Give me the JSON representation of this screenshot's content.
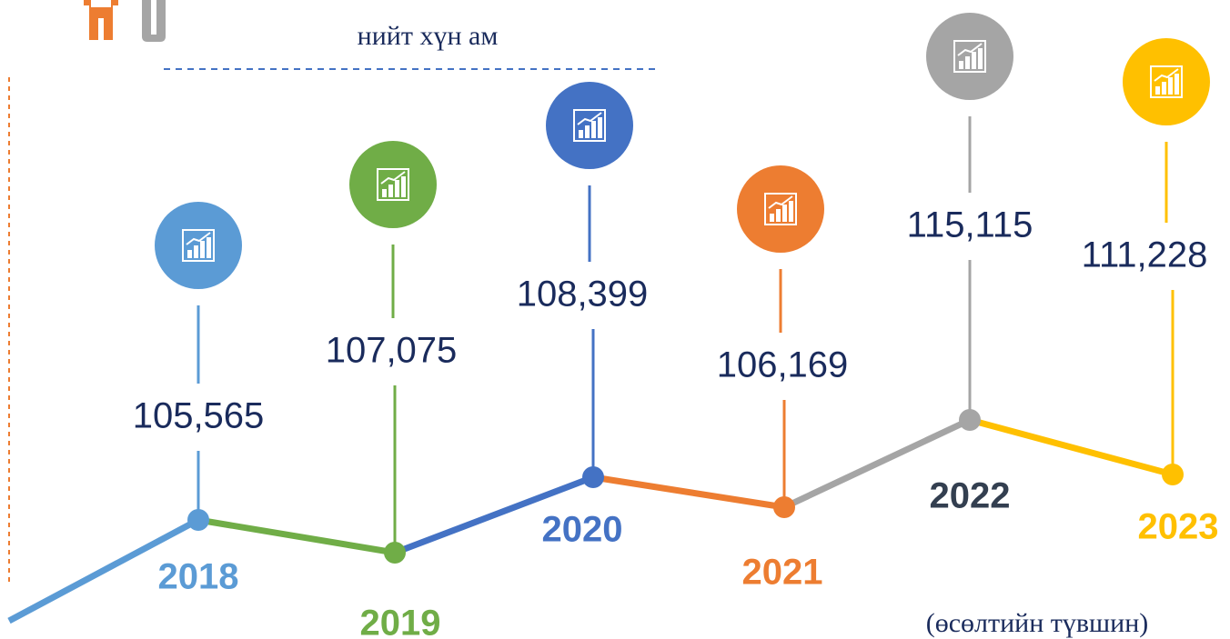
{
  "title": "нийт хүн ам",
  "footnote": "(өсөлтийн түвшин)",
  "items": [
    {
      "year": "2018",
      "value": "105,565",
      "color": "#5b9bd5",
      "year_color": "#5b9bd5"
    },
    {
      "year": "2019",
      "value": "107,075",
      "color": "#70ad47",
      "year_color": "#70ad47"
    },
    {
      "year": "2020",
      "value": "108,399",
      "color": "#4472c4",
      "year_color": "#4472c4"
    },
    {
      "year": "2021",
      "value": "106,169",
      "color": "#ed7d31",
      "year_color": "#ed7d31"
    },
    {
      "year": "2022",
      "value": "115,115",
      "color": "#a5a5a5",
      "year_color": "#333f50"
    },
    {
      "year": "2023",
      "value": "111,228",
      "color": "#ffc000",
      "year_color": "#ffc000"
    }
  ]
}
